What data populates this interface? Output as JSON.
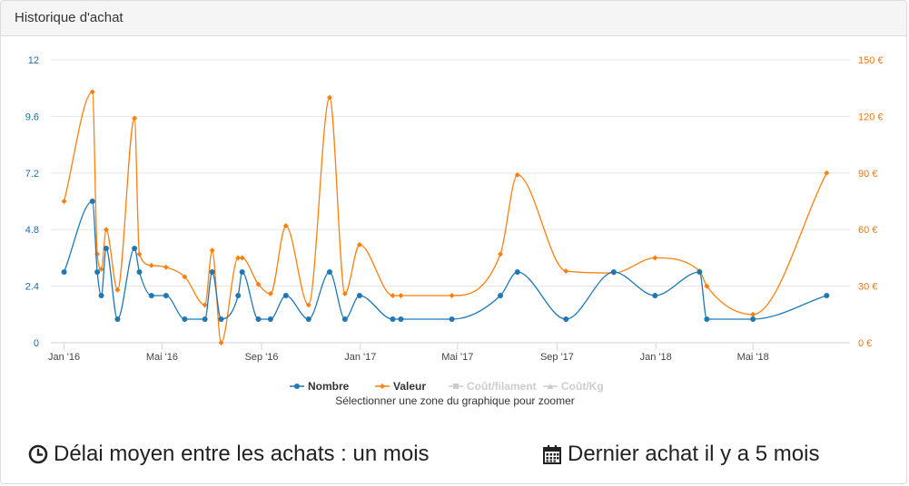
{
  "panel": {
    "title": "Historique d'achat"
  },
  "chart_data": {
    "type": "line",
    "x_min": "2015-12-28",
    "x_max": "2018-08-12",
    "x_ticks": [
      {
        "label": "Jan '16",
        "date": "2016-01-01"
      },
      {
        "label": "Mai '16",
        "date": "2016-05-01"
      },
      {
        "label": "Sep '16",
        "date": "2016-09-01"
      },
      {
        "label": "Jan '17",
        "date": "2017-01-01"
      },
      {
        "label": "Mai '17",
        "date": "2017-05-01"
      },
      {
        "label": "Sep '17",
        "date": "2017-09-01"
      },
      {
        "label": "Jan '18",
        "date": "2018-01-01"
      },
      {
        "label": "Mai '18",
        "date": "2018-05-01"
      }
    ],
    "y_left": {
      "min": 0,
      "max": 12,
      "ticks": [
        "0",
        "2.4",
        "4.8",
        "7.2",
        "9.6",
        "12"
      ],
      "tick_values": [
        0,
        2.4,
        4.8,
        7.2,
        9.6,
        12
      ]
    },
    "y_right": {
      "min": 0,
      "max": 150,
      "ticks": [
        "0 €",
        "30 €",
        "60 €",
        "90 €",
        "120 €",
        "150 €"
      ],
      "tick_values": [
        0,
        30,
        60,
        90,
        120,
        150
      ]
    },
    "grid": true,
    "legend_position": "bottom",
    "zoom_hint": "Sélectionner une zone du graphique pour zoomer",
    "colors": {
      "nombre": "#1f77b4",
      "valeur": "#ff7f0e",
      "disabled": "#cccccc"
    },
    "series": [
      {
        "name": "Nombre",
        "axis": "left",
        "marker": "circle",
        "visible": true,
        "points": [
          [
            "2016-01-01",
            3
          ],
          [
            "2016-02-05",
            6
          ],
          [
            "2016-02-11",
            3
          ],
          [
            "2016-02-16",
            2
          ],
          [
            "2016-02-22",
            4
          ],
          [
            "2016-03-07",
            1
          ],
          [
            "2016-03-28",
            4
          ],
          [
            "2016-04-03",
            3
          ],
          [
            "2016-04-18",
            2
          ],
          [
            "2016-05-06",
            2
          ],
          [
            "2016-05-29",
            1
          ],
          [
            "2016-06-23",
            1
          ],
          [
            "2016-07-02",
            3
          ],
          [
            "2016-07-13",
            1
          ],
          [
            "2016-08-03",
            2
          ],
          [
            "2016-08-08",
            3
          ],
          [
            "2016-08-28",
            1
          ],
          [
            "2016-09-12",
            1
          ],
          [
            "2016-10-01",
            2
          ],
          [
            "2016-10-29",
            1
          ],
          [
            "2016-11-24",
            3
          ],
          [
            "2016-12-13",
            1
          ],
          [
            "2016-12-31",
            2
          ],
          [
            "2017-02-10",
            1
          ],
          [
            "2017-02-20",
            1
          ],
          [
            "2017-04-24",
            1
          ],
          [
            "2017-06-23",
            2
          ],
          [
            "2017-07-14",
            3
          ],
          [
            "2017-09-12",
            1
          ],
          [
            "2017-11-10",
            3
          ],
          [
            "2017-12-31",
            2
          ],
          [
            "2018-02-24",
            3
          ],
          [
            "2018-03-05",
            1
          ],
          [
            "2018-05-01",
            1
          ],
          [
            "2018-07-31",
            2
          ]
        ]
      },
      {
        "name": "Valeur",
        "axis": "right",
        "marker": "diamond",
        "visible": true,
        "points": [
          [
            "2016-01-01",
            75
          ],
          [
            "2016-02-05",
            133
          ],
          [
            "2016-02-11",
            47
          ],
          [
            "2016-02-16",
            39
          ],
          [
            "2016-02-22",
            60
          ],
          [
            "2016-03-07",
            28
          ],
          [
            "2016-03-28",
            119
          ],
          [
            "2016-04-03",
            47
          ],
          [
            "2016-04-18",
            41
          ],
          [
            "2016-05-06",
            40
          ],
          [
            "2016-05-29",
            35
          ],
          [
            "2016-06-23",
            20
          ],
          [
            "2016-07-02",
            49
          ],
          [
            "2016-07-13",
            0
          ],
          [
            "2016-08-03",
            45
          ],
          [
            "2016-08-08",
            45
          ],
          [
            "2016-08-28",
            31
          ],
          [
            "2016-09-12",
            26
          ],
          [
            "2016-10-01",
            62
          ],
          [
            "2016-10-29",
            20
          ],
          [
            "2016-11-24",
            130
          ],
          [
            "2016-12-13",
            26
          ],
          [
            "2016-12-31",
            52
          ],
          [
            "2017-02-10",
            25
          ],
          [
            "2017-02-20",
            25
          ],
          [
            "2017-04-24",
            25
          ],
          [
            "2017-06-23",
            47
          ],
          [
            "2017-07-14",
            89
          ],
          [
            "2017-09-12",
            38
          ],
          [
            "2017-11-10",
            37
          ],
          [
            "2017-12-31",
            45
          ],
          [
            "2018-02-24",
            38
          ],
          [
            "2018-03-05",
            30
          ],
          [
            "2018-05-01",
            15
          ],
          [
            "2018-07-31",
            90
          ]
        ]
      },
      {
        "name": "Coût/filament",
        "axis": "left",
        "marker": "square",
        "visible": false,
        "points": []
      },
      {
        "name": "Coût/Kg",
        "axis": "left",
        "marker": "triangle",
        "visible": false,
        "points": []
      }
    ]
  },
  "stats": {
    "avg_delay": "Délai moyen entre les achats : un mois",
    "last_purchase": "Dernier achat il y a 5 mois"
  },
  "icons": {
    "avg_delay": "clock-icon",
    "last_purchase": "calendar-icon"
  }
}
